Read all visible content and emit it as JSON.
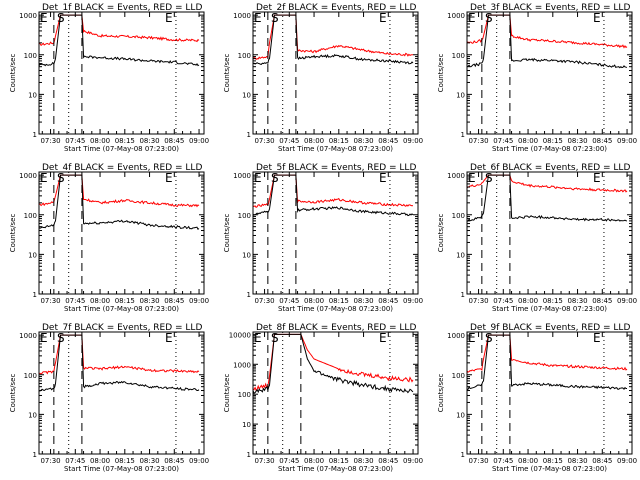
{
  "figure": {
    "colors": {
      "events": "#000000",
      "lld": "#ff0000",
      "axes": "#000000",
      "background": "#ffffff"
    }
  },
  "chart_data": [
    {
      "type": "line",
      "title": "Det_1f BLACK = Events, RED = LLD",
      "xlabel": "Start Time (07-May-08 07:23:00)",
      "ylabel": "Counts/sec",
      "xticks": [
        "07:30",
        "07:45",
        "08:00",
        "08:15",
        "08:30",
        "08:45",
        "09:00"
      ],
      "yticks": [
        "1",
        "10",
        "100",
        "1000"
      ],
      "yscale": "log",
      "ylim": [
        1,
        1200
      ],
      "markers": [
        {
          "label": "E",
          "x": "07:23"
        },
        {
          "label": "S",
          "x": "07:34"
        },
        {
          "label": "E",
          "x": "08:47"
        }
      ],
      "series": [
        {
          "name": "BLACK = Events",
          "x": [
            "07:23",
            "07:28",
            "07:32",
            "07:33",
            "07:36",
            "07:49",
            "07:50",
            "08:00",
            "08:15",
            "08:30",
            "08:45",
            "09:00"
          ],
          "values": [
            55,
            57,
            60,
            80,
            1000,
            1000,
            90,
            85,
            78,
            70,
            65,
            55
          ]
        },
        {
          "name": "RED = LLD",
          "x": [
            "07:23",
            "07:28",
            "07:32",
            "07:33",
            "07:36",
            "07:49",
            "07:50",
            "08:00",
            "08:15",
            "08:30",
            "08:45",
            "09:00"
          ],
          "values": [
            180,
            190,
            200,
            300,
            1000,
            1000,
            400,
            300,
            290,
            270,
            240,
            230
          ]
        }
      ]
    },
    {
      "type": "line",
      "title": "Det_2f BLACK = Events, RED = LLD",
      "xlabel": "Start Time (07-May-08 07:23:00)",
      "ylabel": "Counts/sec",
      "xticks": [
        "07:30",
        "07:45",
        "08:00",
        "08:15",
        "08:30",
        "08:45",
        "09:00"
      ],
      "yticks": [
        "1",
        "10",
        "100",
        "1000"
      ],
      "yscale": "log",
      "ylim": [
        1,
        1200
      ],
      "markers": [
        {
          "label": "E",
          "x": "07:23"
        },
        {
          "label": "S",
          "x": "07:34"
        },
        {
          "label": "E",
          "x": "08:47"
        }
      ],
      "series": [
        {
          "name": "BLACK = Events",
          "x": [
            "07:23",
            "07:28",
            "07:32",
            "07:33",
            "07:36",
            "07:49",
            "07:50",
            "08:00",
            "08:15",
            "08:30",
            "08:45",
            "09:00"
          ],
          "values": [
            60,
            60,
            65,
            80,
            1000,
            1000,
            80,
            90,
            95,
            75,
            70,
            62
          ]
        },
        {
          "name": "RED = LLD",
          "x": [
            "07:23",
            "07:28",
            "07:32",
            "07:33",
            "07:36",
            "07:49",
            "07:50",
            "08:00",
            "08:15",
            "08:30",
            "08:45",
            "09:00"
          ],
          "values": [
            80,
            85,
            90,
            200,
            1000,
            1000,
            130,
            120,
            170,
            130,
            105,
            100
          ]
        }
      ]
    },
    {
      "type": "line",
      "title": "Det_3f BLACK = Events, RED = LLD",
      "xlabel": "Start Time (07-May-08 07:23:00)",
      "ylabel": "Counts/sec",
      "xticks": [
        "07:30",
        "07:45",
        "08:00",
        "08:15",
        "08:30",
        "08:45",
        "09:00"
      ],
      "yticks": [
        "1",
        "10",
        "100",
        "1000"
      ],
      "yscale": "log",
      "ylim": [
        1,
        1200
      ],
      "markers": [
        {
          "label": "E",
          "x": "07:23"
        },
        {
          "label": "S",
          "x": "07:34"
        },
        {
          "label": "E",
          "x": "08:47"
        }
      ],
      "series": [
        {
          "name": "BLACK = Events",
          "x": [
            "07:23",
            "07:28",
            "07:32",
            "07:33",
            "07:36",
            "07:49",
            "07:50",
            "08:00",
            "08:15",
            "08:30",
            "08:45",
            "09:00"
          ],
          "values": [
            50,
            55,
            60,
            80,
            1000,
            1000,
            70,
            75,
            72,
            65,
            55,
            48
          ]
        },
        {
          "name": "RED = LLD",
          "x": [
            "07:23",
            "07:28",
            "07:32",
            "07:33",
            "07:36",
            "07:49",
            "07:50",
            "08:00",
            "08:15",
            "08:30",
            "08:45",
            "09:00"
          ],
          "values": [
            200,
            210,
            230,
            300,
            1000,
            1000,
            300,
            240,
            220,
            200,
            180,
            160
          ]
        }
      ]
    },
    {
      "type": "line",
      "title": "Det_4f BLACK = Events, RED = LLD",
      "xlabel": "Start Time (07-May-08 07:23:00)",
      "ylabel": "Counts/sec",
      "xticks": [
        "07:30",
        "07:45",
        "08:00",
        "08:15",
        "08:30",
        "08:45",
        "09:00"
      ],
      "yticks": [
        "1",
        "10",
        "100",
        "1000"
      ],
      "yscale": "log",
      "ylim": [
        1,
        1200
      ],
      "markers": [
        {
          "label": "E",
          "x": "07:23"
        },
        {
          "label": "S",
          "x": "07:34"
        },
        {
          "label": "E",
          "x": "08:47"
        }
      ],
      "series": [
        {
          "name": "BLACK = Events",
          "x": [
            "07:23",
            "07:28",
            "07:32",
            "07:33",
            "07:36",
            "07:49",
            "07:50",
            "08:00",
            "08:15",
            "08:30",
            "08:45",
            "09:00"
          ],
          "values": [
            45,
            50,
            55,
            70,
            1000,
            1000,
            60,
            62,
            70,
            55,
            50,
            45
          ]
        },
        {
          "name": "RED = LLD",
          "x": [
            "07:23",
            "07:28",
            "07:32",
            "07:33",
            "07:36",
            "07:49",
            "07:50",
            "08:00",
            "08:15",
            "08:30",
            "08:45",
            "09:00"
          ],
          "values": [
            180,
            190,
            210,
            300,
            1000,
            1000,
            250,
            200,
            230,
            200,
            175,
            170
          ]
        }
      ]
    },
    {
      "type": "line",
      "title": "Det_5f BLACK = Events, RED = LLD",
      "xlabel": "Start Time (07-May-08 07:23:00)",
      "ylabel": "Counts/sec",
      "xticks": [
        "07:30",
        "07:45",
        "08:00",
        "08:15",
        "08:30",
        "08:45",
        "09:00"
      ],
      "yticks": [
        "1",
        "10",
        "100",
        "1000"
      ],
      "yscale": "log",
      "ylim": [
        1,
        1200
      ],
      "markers": [
        {
          "label": "E",
          "x": "07:23"
        },
        {
          "label": "S",
          "x": "07:34"
        },
        {
          "label": "E",
          "x": "08:47"
        }
      ],
      "series": [
        {
          "name": "BLACK = Events",
          "x": [
            "07:23",
            "07:28",
            "07:32",
            "07:33",
            "07:36",
            "07:49",
            "07:50",
            "08:00",
            "08:15",
            "08:30",
            "08:45",
            "09:00"
          ],
          "values": [
            100,
            110,
            120,
            140,
            1000,
            1000,
            130,
            140,
            150,
            120,
            110,
            100
          ]
        },
        {
          "name": "RED = LLD",
          "x": [
            "07:23",
            "07:28",
            "07:32",
            "07:33",
            "07:36",
            "07:49",
            "07:50",
            "08:00",
            "08:15",
            "08:30",
            "08:45",
            "09:00"
          ],
          "values": [
            160,
            170,
            180,
            250,
            1000,
            1000,
            220,
            210,
            240,
            200,
            180,
            170
          ]
        }
      ]
    },
    {
      "type": "line",
      "title": "Det_6f BLACK = Events, RED = LLD",
      "xlabel": "Start Time (07-May-08 07:23:00)",
      "ylabel": "Counts/sec",
      "xticks": [
        "07:30",
        "07:45",
        "08:00",
        "08:15",
        "08:30",
        "08:45",
        "09:00"
      ],
      "yticks": [
        "1",
        "10",
        "100",
        "1000"
      ],
      "yscale": "log",
      "ylim": [
        1,
        1200
      ],
      "markers": [
        {
          "label": "E",
          "x": "07:23"
        },
        {
          "label": "S",
          "x": "07:34"
        },
        {
          "label": "E",
          "x": "08:47"
        }
      ],
      "series": [
        {
          "name": "BLACK = Events",
          "x": [
            "07:23",
            "07:28",
            "07:32",
            "07:33",
            "07:36",
            "07:49",
            "07:50",
            "08:00",
            "08:15",
            "08:30",
            "08:45",
            "09:00"
          ],
          "values": [
            70,
            80,
            90,
            110,
            1000,
            1000,
            80,
            90,
            85,
            75,
            75,
            70
          ]
        },
        {
          "name": "RED = LLD",
          "x": [
            "07:23",
            "07:28",
            "07:32",
            "07:33",
            "07:36",
            "07:49",
            "07:50",
            "08:00",
            "08:15",
            "08:30",
            "08:45",
            "09:00"
          ],
          "values": [
            500,
            550,
            600,
            700,
            1000,
            1000,
            700,
            550,
            500,
            450,
            420,
            400
          ]
        }
      ]
    },
    {
      "type": "line",
      "title": "Det_7f BLACK = Events, RED = LLD",
      "xlabel": "Start Time (07-May-08 07:23:00)",
      "ylabel": "Counts/sec",
      "xticks": [
        "07:30",
        "07:45",
        "08:00",
        "08:15",
        "08:30",
        "08:45",
        "09:00"
      ],
      "yticks": [
        "1",
        "10",
        "100",
        "1000"
      ],
      "yscale": "log",
      "ylim": [
        1,
        1200
      ],
      "markers": [
        {
          "label": "E",
          "x": "07:23"
        },
        {
          "label": "S",
          "x": "07:34"
        },
        {
          "label": "E",
          "x": "08:47"
        }
      ],
      "series": [
        {
          "name": "BLACK = Events",
          "x": [
            "07:23",
            "07:28",
            "07:32",
            "07:33",
            "07:36",
            "07:49",
            "07:50",
            "08:00",
            "08:15",
            "08:30",
            "08:45",
            "09:00"
          ],
          "values": [
            40,
            42,
            45,
            60,
            1000,
            1000,
            50,
            60,
            65,
            50,
            45,
            42
          ]
        },
        {
          "name": "RED = LLD",
          "x": [
            "07:23",
            "07:28",
            "07:32",
            "07:33",
            "07:36",
            "07:49",
            "07:50",
            "08:00",
            "08:15",
            "08:30",
            "08:45",
            "09:00"
          ],
          "values": [
            110,
            115,
            120,
            200,
            1000,
            1000,
            150,
            140,
            160,
            130,
            125,
            120
          ]
        }
      ]
    },
    {
      "type": "line",
      "title": "Det_8f BLACK = Events, RED = LLD",
      "xlabel": "Start Time (07-May-08 07:23:00)",
      "ylabel": "Counts/sec",
      "xticks": [
        "07:30",
        "07:45",
        "08:00",
        "08:15",
        "08:30",
        "08:45",
        "09:00"
      ],
      "yticks": [
        "1",
        "10",
        "100",
        "1000",
        "10000"
      ],
      "yscale": "log",
      "ylim": [
        1,
        12000
      ],
      "markers": [
        {
          "label": "E",
          "x": "07:23"
        },
        {
          "label": "S",
          "x": "07:34"
        },
        {
          "label": "E",
          "x": "08:47"
        }
      ],
      "series": [
        {
          "name": "BLACK = Events",
          "x": [
            "07:23",
            "07:28",
            "07:32",
            "07:33",
            "07:36",
            "07:52",
            "07:56",
            "08:00",
            "08:15",
            "08:30",
            "08:45",
            "09:00"
          ],
          "values": [
            120,
            130,
            150,
            200,
            10000,
            10000,
            1500,
            600,
            300,
            200,
            150,
            120
          ]
        },
        {
          "name": "RED = LLD",
          "x": [
            "07:23",
            "07:28",
            "07:32",
            "07:33",
            "07:36",
            "07:52",
            "07:56",
            "08:00",
            "08:15",
            "08:30",
            "08:45",
            "09:00"
          ],
          "values": [
            150,
            170,
            200,
            400,
            10000,
            10000,
            3000,
            1500,
            700,
            450,
            350,
            300
          ]
        }
      ]
    },
    {
      "type": "line",
      "title": "Det_9f BLACK = Events, RED = LLD",
      "xlabel": "Start Time (07-May-08 07:23:00)",
      "ylabel": "Counts/sec",
      "xticks": [
        "07:30",
        "07:45",
        "08:00",
        "08:15",
        "08:30",
        "08:45",
        "09:00"
      ],
      "yticks": [
        "1",
        "10",
        "100",
        "1000"
      ],
      "yscale": "log",
      "ylim": [
        1,
        1200
      ],
      "markers": [
        {
          "label": "E",
          "x": "07:23"
        },
        {
          "label": "S",
          "x": "07:34"
        },
        {
          "label": "E",
          "x": "08:47"
        }
      ],
      "series": [
        {
          "name": "BLACK = Events",
          "x": [
            "07:23",
            "07:28",
            "07:32",
            "07:33",
            "07:36",
            "07:49",
            "07:50",
            "08:00",
            "08:15",
            "08:30",
            "08:45",
            "09:00"
          ],
          "values": [
            45,
            50,
            55,
            70,
            1000,
            1000,
            55,
            60,
            55,
            50,
            48,
            45
          ]
        },
        {
          "name": "RED = LLD",
          "x": [
            "07:23",
            "07:28",
            "07:32",
            "07:33",
            "07:36",
            "07:49",
            "07:50",
            "08:00",
            "08:15",
            "08:30",
            "08:45",
            "09:00"
          ],
          "values": [
            120,
            130,
            140,
            250,
            1000,
            1000,
            250,
            200,
            170,
            160,
            150,
            140
          ]
        }
      ]
    }
  ]
}
